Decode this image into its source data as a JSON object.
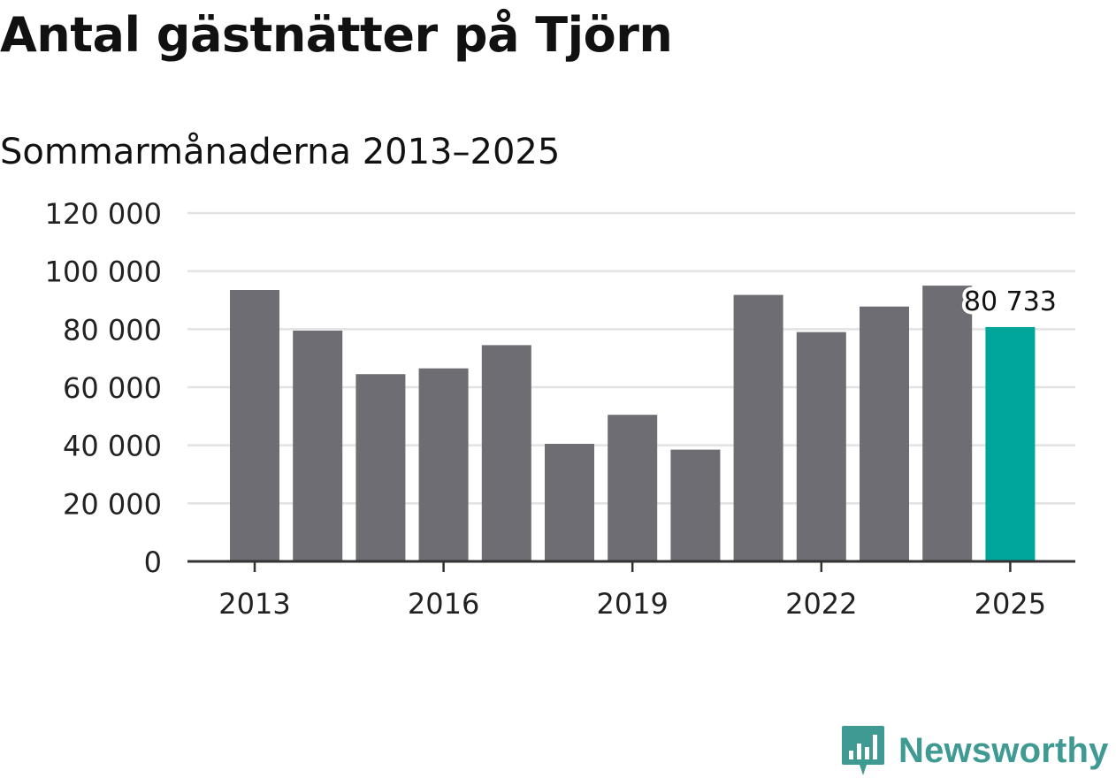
{
  "title": "Antal gästnätter på Tjörn",
  "subtitle": "Sommarmånaderna 2013–2025",
  "brand": {
    "name": "Newsworthy",
    "logo_icon": "newsworthy-bar-chart-speech-bubble-icon"
  },
  "colors": {
    "bar": "#6e6d73",
    "highlight": "#00a59a",
    "grid": "#e2e2e2",
    "axis": "#333333",
    "brand": "#3f9a93"
  },
  "chart_data": {
    "type": "bar",
    "categories": [
      "2013",
      "2014",
      "2015",
      "2016",
      "2017",
      "2018",
      "2019",
      "2020",
      "2021",
      "2022",
      "2023",
      "2024",
      "2025"
    ],
    "values": [
      93500,
      79500,
      64500,
      66500,
      74500,
      40500,
      50500,
      38500,
      91800,
      79000,
      87800,
      95000,
      80733
    ],
    "highlight_category": "2025",
    "data_labels": [
      {
        "category": "2025",
        "text": "80 733"
      }
    ],
    "x_tick_labels": [
      "2013",
      "2016",
      "2019",
      "2022",
      "2025"
    ],
    "y_tick_labels": [
      "0",
      "20 000",
      "40 000",
      "60 000",
      "80 000",
      "100 000",
      "120 000"
    ],
    "y_ticks": [
      0,
      20000,
      40000,
      60000,
      80000,
      100000,
      120000
    ],
    "ylim": [
      0,
      120000
    ],
    "grid": true,
    "legend": false,
    "xlabel": "",
    "ylabel": ""
  }
}
